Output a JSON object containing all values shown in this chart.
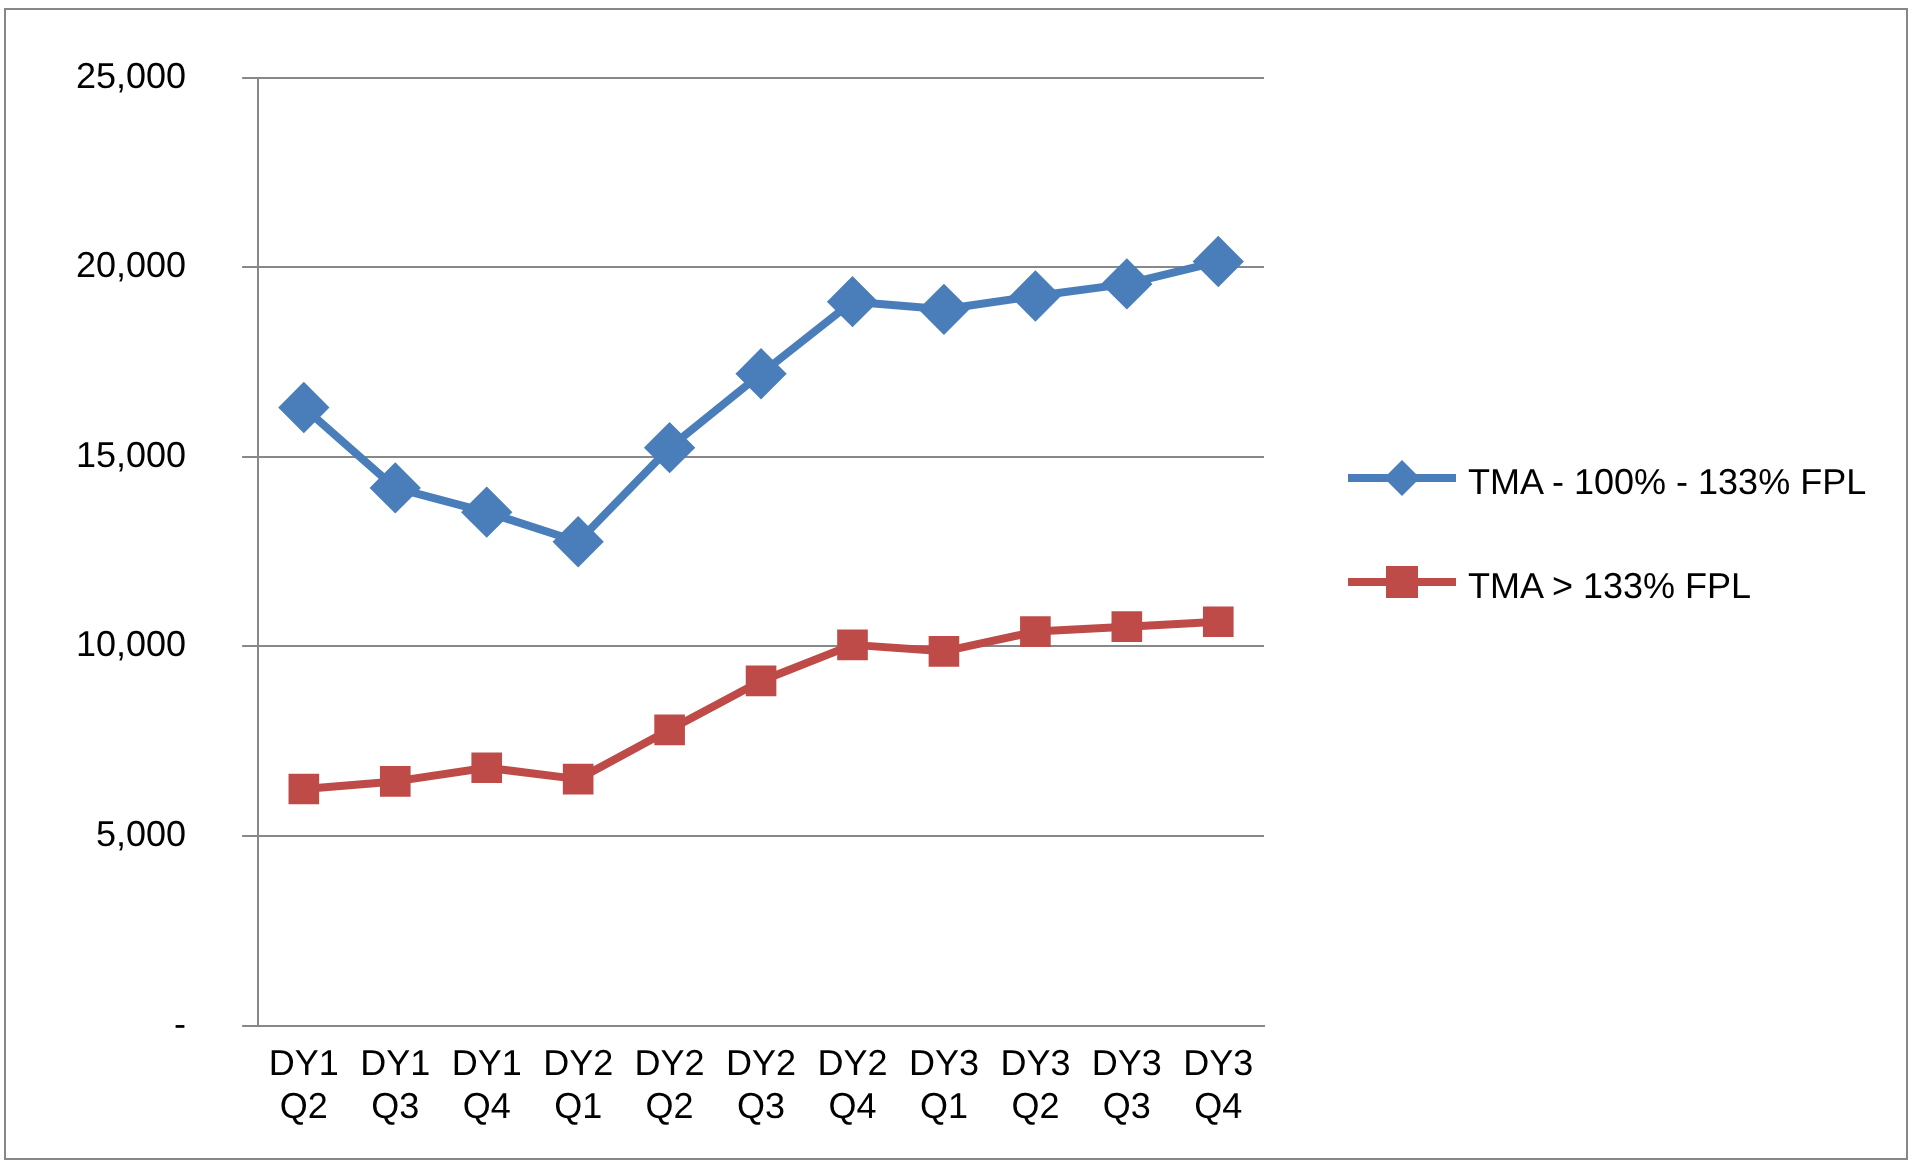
{
  "chart_data": {
    "type": "line",
    "categories": [
      "DY1 Q2",
      "DY1 Q3",
      "DY1 Q4",
      "DY2 Q1",
      "DY2 Q2",
      "DY2 Q3",
      "DY2 Q4",
      "DY3 Q1",
      "DY3 Q2",
      "DY3 Q3",
      "DY3 Q4"
    ],
    "series": [
      {
        "name": "TMA - 100% - 133% FPL",
        "color": "#4a7ebb",
        "marker": "diamond",
        "values": [
          16300,
          14180,
          13540,
          12760,
          15240,
          17190,
          19090,
          18890,
          19240,
          19560,
          20150
        ]
      },
      {
        "name": "TMA > 133% FPL",
        "color": "#be4b48",
        "marker": "square",
        "values": [
          6240,
          6440,
          6800,
          6500,
          7800,
          9090,
          10040,
          9870,
          10390,
          10520,
          10650
        ]
      }
    ],
    "ylim": [
      0,
      25000
    ],
    "yticks": [
      {
        "value": 0,
        "label": "-"
      },
      {
        "value": 5000,
        "label": "5,000"
      },
      {
        "value": 10000,
        "label": "10,000"
      },
      {
        "value": 15000,
        "label": "15,000"
      },
      {
        "value": 20000,
        "label": "20,000"
      },
      {
        "value": 25000,
        "label": "25,000"
      }
    ],
    "grid": "y",
    "legend": "right",
    "line_style": "solid"
  }
}
